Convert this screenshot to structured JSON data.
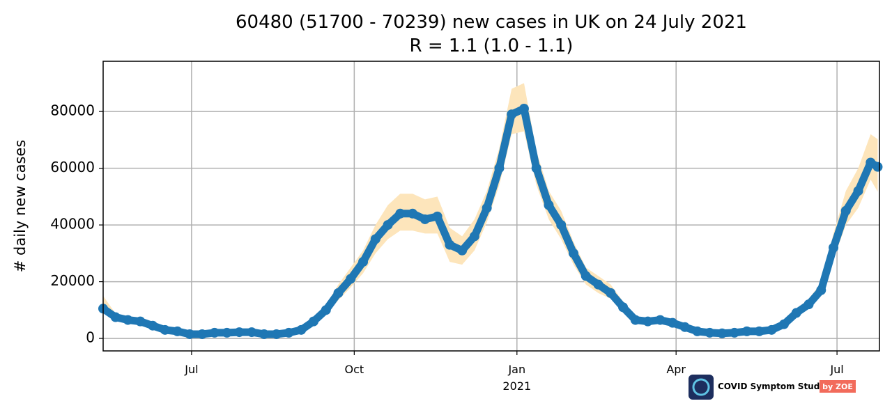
{
  "chart_data": {
    "type": "scatter",
    "title": "60480 (51700 - 70239) new cases in UK on 24 July 2021",
    "subtitle": "R = 1.1 (1.0 - 1.1)",
    "y_label": "# daily new cases",
    "x_offset_label": "2021",
    "logo": {
      "text": "COVID Symptom Study",
      "badge": "by ZOE"
    },
    "x": [
      "2020-05-12",
      "2020-05-19",
      "2020-05-26",
      "2020-06-02",
      "2020-06-09",
      "2020-06-16",
      "2020-06-23",
      "2020-06-30",
      "2020-07-07",
      "2020-07-14",
      "2020-07-21",
      "2020-07-28",
      "2020-08-04",
      "2020-08-11",
      "2020-08-18",
      "2020-08-25",
      "2020-09-01",
      "2020-09-08",
      "2020-09-15",
      "2020-09-22",
      "2020-09-29",
      "2020-10-06",
      "2020-10-13",
      "2020-10-20",
      "2020-10-27",
      "2020-11-03",
      "2020-11-10",
      "2020-11-17",
      "2020-11-24",
      "2020-12-01",
      "2020-12-08",
      "2020-12-15",
      "2020-12-22",
      "2020-12-29",
      "2021-01-05",
      "2021-01-12",
      "2021-01-19",
      "2021-01-26",
      "2021-02-02",
      "2021-02-09",
      "2021-02-16",
      "2021-02-23",
      "2021-03-02",
      "2021-03-09",
      "2021-03-16",
      "2021-03-23",
      "2021-03-30",
      "2021-04-06",
      "2021-04-13",
      "2021-04-20",
      "2021-04-27",
      "2021-05-04",
      "2021-05-11",
      "2021-05-18",
      "2021-05-25",
      "2021-06-01",
      "2021-06-08",
      "2021-06-15",
      "2021-06-22",
      "2021-06-29",
      "2021-07-06",
      "2021-07-13",
      "2021-07-20",
      "2021-07-24"
    ],
    "series": [
      {
        "name": "new cases",
        "color": "#1f77b4",
        "values": [
          10500,
          7500,
          6500,
          6000,
          4500,
          3000,
          2500,
          1500,
          1500,
          2000,
          2000,
          2200,
          2200,
          1500,
          1500,
          2000,
          3000,
          6000,
          10000,
          16000,
          21000,
          27000,
          35000,
          40000,
          44000,
          44000,
          42000,
          43000,
          33000,
          31000,
          36000,
          46000,
          60000,
          79000,
          81000,
          60000,
          47000,
          40000,
          30000,
          22000,
          19000,
          16000,
          11000,
          6500,
          6000,
          6500,
          5500,
          4000,
          2500,
          2000,
          1800,
          2000,
          2500,
          2500,
          3000,
          5000,
          9000,
          12000,
          17000,
          32000,
          45000,
          52000,
          62000,
          60480
        ]
      }
    ],
    "band": {
      "color": "#fde5bb",
      "lower": [
        9000,
        6500,
        5500,
        5000,
        3800,
        2500,
        2000,
        1200,
        1200,
        1700,
        1700,
        1900,
        1900,
        1200,
        1200,
        1700,
        2500,
        5000,
        8500,
        13500,
        18000,
        23000,
        30000,
        35000,
        38000,
        38000,
        37000,
        37000,
        27000,
        26000,
        31000,
        41000,
        54000,
        72000,
        73000,
        54000,
        42000,
        35000,
        26000,
        19000,
        16000,
        14000,
        9500,
        5500,
        5000,
        5500,
        4500,
        3300,
        2000,
        1600,
        1500,
        1600,
        2000,
        2000,
        2500,
        4200,
        7800,
        10500,
        15000,
        28000,
        40000,
        46000,
        56000,
        51700
      ],
      "upper": [
        15000,
        8800,
        7600,
        7000,
        5300,
        3600,
        3000,
        1900,
        1900,
        2400,
        2400,
        2600,
        2600,
        1900,
        1900,
        2400,
        3600,
        7000,
        11800,
        19000,
        25000,
        31000,
        40000,
        47000,
        51000,
        51000,
        49000,
        50000,
        39000,
        36000,
        42000,
        52000,
        67000,
        88000,
        90000,
        66000,
        52000,
        45000,
        34000,
        25000,
        22000,
        19000,
        13000,
        7500,
        7000,
        7500,
        6500,
        4800,
        3000,
        2500,
        2200,
        2400,
        3000,
        3000,
        3600,
        5800,
        10300,
        14000,
        19500,
        37000,
        52000,
        60000,
        72000,
        70239
      ]
    },
    "xlim": [
      "2020-05-12",
      "2021-07-25"
    ],
    "xticks": [
      {
        "value": "2020-07-01",
        "label": "Jul"
      },
      {
        "value": "2020-10-01",
        "label": "Oct"
      },
      {
        "value": "2021-01-01",
        "label": "Jan"
      },
      {
        "value": "2021-04-01",
        "label": "Apr"
      },
      {
        "value": "2021-07-01",
        "label": "Jul"
      }
    ],
    "ylim": [
      -4400,
      97700
    ],
    "yticks": [
      0,
      20000,
      40000,
      60000,
      80000
    ],
    "grid": true
  }
}
